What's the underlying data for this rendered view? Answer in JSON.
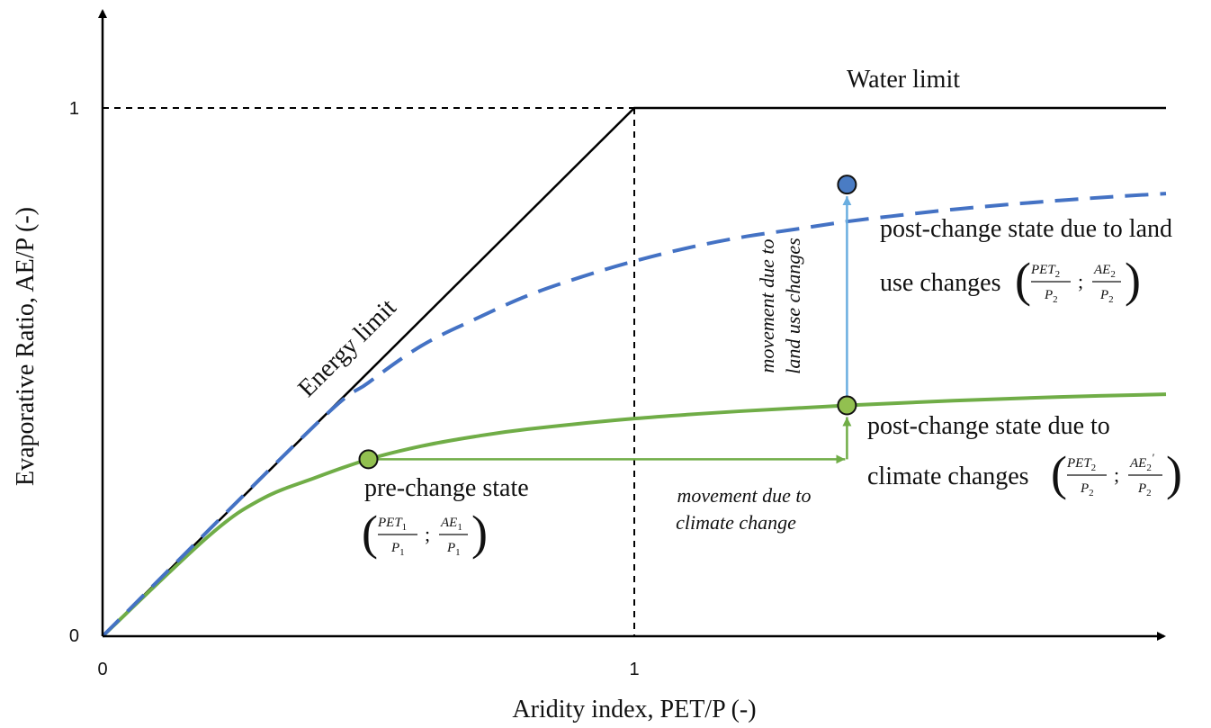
{
  "axes": {
    "x_label": "Aridity index, PET/P (-)",
    "y_label": "Evaporative Ratio, AE/P (-)",
    "x_ticks": [
      "0",
      "1"
    ],
    "y_ticks": [
      "0",
      "1"
    ]
  },
  "annotations": {
    "water_limit": "Water limit",
    "energy_limit": "Energy limit",
    "pre_change": "pre-change state",
    "post_land_line1": "post-change state due to land",
    "post_land_line2": "use changes",
    "post_climate_line1": "post-change state due to",
    "post_climate_line2": "climate changes",
    "move_climate_line1": "movement due to",
    "move_climate_line2": "climate change",
    "move_land_line1": "movement due to",
    "move_land_line2": "land use changes"
  },
  "math": {
    "pet": "PET",
    "ae": "AE",
    "p": "P",
    "sep": ";",
    "sub_1": "1",
    "sub_2": "2",
    "prime": "′"
  },
  "colors": {
    "limits": "#000000",
    "green_curve": "#70ad47",
    "green_point": "#92c050",
    "blue_curve": "#4472c4",
    "blue_point": "#4a7cc4",
    "blue_arrow": "#6aaee0"
  },
  "chart_data": {
    "type": "line",
    "xlim": [
      0,
      2
    ],
    "ylim": [
      0,
      1
    ],
    "series": [
      {
        "role": "energy-and-water-limit",
        "style": "solid",
        "color": "#000000",
        "points": [
          [
            0,
            0
          ],
          [
            1,
            1
          ],
          [
            2,
            1
          ]
        ]
      },
      {
        "role": "pre-change-curve",
        "style": "solid",
        "color": "#70ad47",
        "points": [
          [
            0,
            0
          ],
          [
            0.2,
            0.19
          ],
          [
            0.3,
            0.26
          ],
          [
            0.4,
            0.3
          ],
          [
            0.5,
            0.335
          ],
          [
            0.6,
            0.36
          ],
          [
            0.7,
            0.378
          ],
          [
            0.8,
            0.392
          ],
          [
            1.0,
            0.412
          ],
          [
            1.2,
            0.426
          ],
          [
            1.4,
            0.437
          ],
          [
            1.6,
            0.446
          ],
          [
            1.8,
            0.453
          ],
          [
            2.0,
            0.458
          ]
        ]
      },
      {
        "role": "post-land-use-curve",
        "style": "dashed",
        "color": "#4472c4",
        "points": [
          [
            0,
            0
          ],
          [
            0.4,
            0.4
          ],
          [
            0.5,
            0.48
          ],
          [
            0.6,
            0.55
          ],
          [
            0.7,
            0.6
          ],
          [
            0.8,
            0.645
          ],
          [
            0.9,
            0.68
          ],
          [
            1.0,
            0.71
          ],
          [
            1.1,
            0.735
          ],
          [
            1.2,
            0.755
          ],
          [
            1.3,
            0.77
          ],
          [
            1.4,
            0.785
          ],
          [
            1.5,
            0.797
          ],
          [
            1.6,
            0.808
          ],
          [
            1.7,
            0.817
          ],
          [
            1.8,
            0.825
          ],
          [
            1.9,
            0.832
          ],
          [
            2.0,
            0.838
          ]
        ]
      }
    ],
    "points": [
      {
        "role": "pre-change",
        "x": 0.5,
        "y": 0.335,
        "color": "#92c050"
      },
      {
        "role": "post-climate-change",
        "x": 1.4,
        "y": 0.437,
        "color": "#92c050"
      },
      {
        "role": "post-land-use-change",
        "x": 1.4,
        "y": 0.855,
        "color": "#4a7cc4"
      }
    ],
    "arrows": [
      {
        "role": "climate-change-movement",
        "from": [
          0.5,
          0.335
        ],
        "to": [
          1.4,
          0.335
        ],
        "color": "#70ad47"
      },
      {
        "role": "climate-change-movement-up",
        "from": [
          1.4,
          0.335
        ],
        "to": [
          1.4,
          0.437
        ],
        "color": "#70ad47"
      },
      {
        "role": "land-use-movement",
        "from": [
          1.4,
          0.437
        ],
        "to": [
          1.4,
          0.855
        ],
        "color": "#6aaee0"
      }
    ]
  }
}
